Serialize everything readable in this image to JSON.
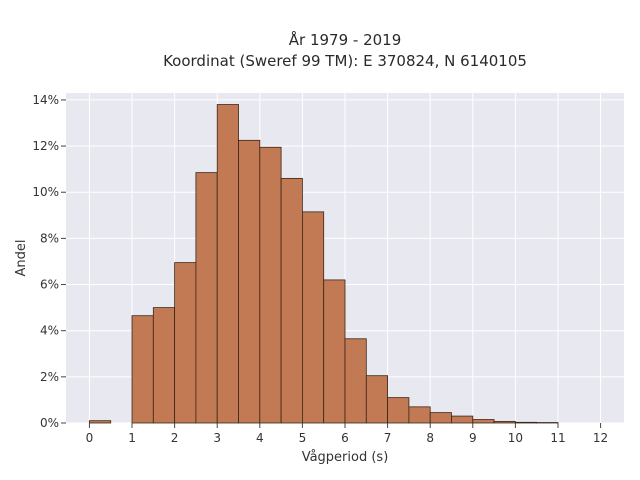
{
  "chart_data": {
    "type": "bar",
    "title": "År 1979 - 2019",
    "subtitle": "Koordinat (Sweref 99 TM): E 370824, N 6140105",
    "xlabel": "Vågperiod (s)",
    "ylabel": "Andel",
    "xlim": [
      -0.55,
      12.55
    ],
    "ylim": [
      0,
      14.3
    ],
    "x_ticks": [
      0,
      1,
      2,
      3,
      4,
      5,
      6,
      7,
      8,
      9,
      10,
      11,
      12
    ],
    "y_ticks": [
      0,
      2,
      4,
      6,
      8,
      10,
      12,
      14
    ],
    "y_tick_format": "percent",
    "grid": true,
    "bar_color": "#c27a54",
    "bar_edge_color": "#3b2516",
    "plot_background": "#e8e8f0",
    "bins": [
      {
        "start": 0.0,
        "end": 0.5,
        "value": 0.1
      },
      {
        "start": 1.0,
        "end": 1.5,
        "value": 4.65
      },
      {
        "start": 1.5,
        "end": 2.0,
        "value": 5.0
      },
      {
        "start": 2.0,
        "end": 2.5,
        "value": 6.95
      },
      {
        "start": 2.5,
        "end": 3.0,
        "value": 10.85
      },
      {
        "start": 3.0,
        "end": 3.5,
        "value": 13.8
      },
      {
        "start": 3.5,
        "end": 4.0,
        "value": 12.25
      },
      {
        "start": 4.0,
        "end": 4.5,
        "value": 11.95
      },
      {
        "start": 4.5,
        "end": 5.0,
        "value": 10.6
      },
      {
        "start": 5.0,
        "end": 5.5,
        "value": 9.15
      },
      {
        "start": 5.5,
        "end": 6.0,
        "value": 6.2
      },
      {
        "start": 6.0,
        "end": 6.5,
        "value": 3.65
      },
      {
        "start": 6.5,
        "end": 7.0,
        "value": 2.05
      },
      {
        "start": 7.0,
        "end": 7.5,
        "value": 1.1
      },
      {
        "start": 7.5,
        "end": 8.0,
        "value": 0.7
      },
      {
        "start": 8.0,
        "end": 8.5,
        "value": 0.45
      },
      {
        "start": 8.5,
        "end": 9.0,
        "value": 0.3
      },
      {
        "start": 9.0,
        "end": 9.5,
        "value": 0.15
      },
      {
        "start": 9.5,
        "end": 10.0,
        "value": 0.07
      },
      {
        "start": 10.0,
        "end": 10.5,
        "value": 0.03
      },
      {
        "start": 10.5,
        "end": 11.0,
        "value": 0.02
      }
    ]
  }
}
